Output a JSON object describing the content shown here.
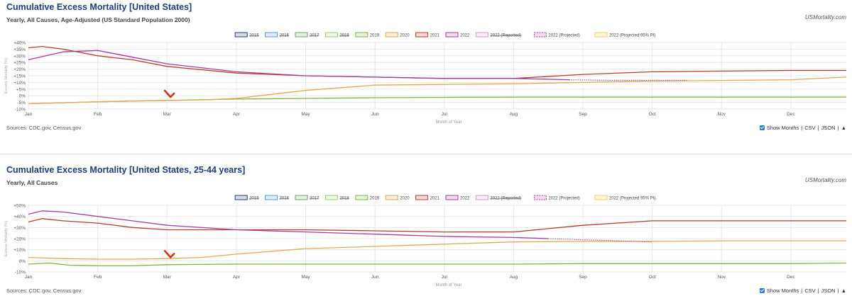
{
  "panels": [
    {
      "title": "Cumulative Excess Mortality [United States]",
      "subtitle": "Yearly, All Causes, Age-Adjusted (US Standard Population 2000)",
      "brand": "USMortality.com",
      "source": "Sources: CDC.gov, Census.gov",
      "controls": {
        "checkbox_label": "Show Months",
        "csv": "CSV",
        "json": "JSON",
        "sep": "|",
        "up": "▲"
      }
    },
    {
      "title": "Cumulative Excess Mortality [United States, 25-44 years]",
      "subtitle": "Yearly, All Causes",
      "brand": "USMortality.com",
      "source": "Sources: CDC.gov, Census.gov",
      "controls": {
        "checkbox_label": "Show Months",
        "csv": "CSV",
        "json": "JSON",
        "sep": "|",
        "up": "▲"
      }
    }
  ],
  "colors": {
    "2015": "#1f3d7a",
    "2016": "#5b9bd5",
    "2017": "#6aa56a",
    "2018": "#9ccc7a",
    "2019": "#7cb342",
    "2020": "#e8a64a",
    "2021": "#c0392b",
    "2022": "#a83c9b",
    "2022 (Reported)": "#d79ac8",
    "2022 (Projected)": "#a83c9b",
    "2022 (Projected 95% PI)": "#f2d35c",
    "arrow": "#d2321e",
    "grid": "#e8e8e8",
    "axis_text": "#555555"
  },
  "chart_data": [
    {
      "type": "line",
      "title": "",
      "xlabel": "Month of Year",
      "ylabel": "Excess Mortality (%)",
      "categories": [
        "Jan",
        "Feb",
        "Mar",
        "Apr",
        "May",
        "Jun",
        "Jul",
        "Aug",
        "Sep",
        "Oct",
        "Nov",
        "Dec"
      ],
      "ytick_labels": [
        "+40%",
        "+35%",
        "+30%",
        "+25%",
        "+20%",
        "+15%",
        "+10%",
        "+5%",
        "0%",
        "-5%",
        "-10%"
      ],
      "ylim": [
        -10,
        40
      ],
      "grid": true,
      "legend": {
        "position": "top-center",
        "entries": [
          {
            "name": "2015",
            "struck": true
          },
          {
            "name": "2016",
            "struck": true
          },
          {
            "name": "2017",
            "struck": true
          },
          {
            "name": "2018",
            "struck": true
          },
          {
            "name": "2019",
            "struck": false
          },
          {
            "name": "2020",
            "struck": false
          },
          {
            "name": "2021",
            "struck": false
          },
          {
            "name": "2022",
            "struck": false
          },
          {
            "name": "2022 (Reported)",
            "struck": true
          },
          {
            "name": "2022 (Projected)",
            "struck": false,
            "dashed": true
          },
          {
            "name": "2022 (Projected 95% PI)",
            "struck": false
          }
        ]
      },
      "series": [
        {
          "name": "2019",
          "x": [
            0,
            1,
            2,
            3,
            4,
            5,
            6,
            7,
            8,
            9,
            10,
            11,
            11.8
          ],
          "values": [
            -6,
            -4.5,
            -3.5,
            -2.5,
            -2,
            -1.5,
            -1.2,
            -1,
            -1,
            -1,
            -1,
            -1,
            -1
          ]
        },
        {
          "name": "2020",
          "x": [
            0,
            1,
            2,
            2.6,
            3,
            3.5,
            4,
            5,
            6,
            7,
            8,
            9,
            10,
            11,
            11.8
          ],
          "values": [
            -6,
            -4.5,
            -3.5,
            -3,
            -2,
            1,
            4,
            8,
            8.5,
            9,
            10,
            11,
            11.5,
            12,
            14
          ]
        },
        {
          "name": "2021",
          "x": [
            0,
            0.2,
            0.5,
            1,
            1.5,
            2,
            3,
            4,
            5,
            6,
            7,
            8,
            9,
            10,
            11,
            11.8
          ],
          "values": [
            36,
            37,
            35,
            30,
            27,
            22,
            17,
            15,
            14,
            13,
            13,
            16,
            18,
            18.5,
            19,
            19
          ]
        },
        {
          "name": "2022",
          "x": [
            0,
            0.5,
            1,
            1.5,
            2,
            3,
            4,
            5,
            6,
            7,
            7.8
          ],
          "values": [
            27,
            33,
            34,
            29,
            24,
            18,
            15,
            14,
            13,
            13,
            12
          ]
        },
        {
          "name": "2022 (Projected)",
          "x": [
            7.8,
            8.5,
            9,
            9.5
          ],
          "values": [
            12,
            11.5,
            11.5,
            11.5
          ]
        }
      ],
      "annotations": [
        {
          "type": "arrow",
          "x": 2.05,
          "y": -1.5
        }
      ]
    },
    {
      "type": "line",
      "title": "",
      "xlabel": "Month of Year",
      "ylabel": "Excess Mortality (%)",
      "categories": [
        "Jan",
        "Feb",
        "Mar",
        "Apr",
        "May",
        "Jun",
        "Jul",
        "Aug",
        "Sep",
        "Oct",
        "Nov",
        "Dec"
      ],
      "ytick_labels": [
        "+50%",
        "+40%",
        "+30%",
        "+20%",
        "+10%",
        "0%",
        "-10%"
      ],
      "ylim": [
        -10,
        50
      ],
      "grid": true,
      "legend": {
        "position": "top-center",
        "entries": [
          {
            "name": "2015",
            "struck": true
          },
          {
            "name": "2016",
            "struck": true
          },
          {
            "name": "2017",
            "struck": true
          },
          {
            "name": "2018",
            "struck": true
          },
          {
            "name": "2019",
            "struck": false
          },
          {
            "name": "2020",
            "struck": false
          },
          {
            "name": "2021",
            "struck": false
          },
          {
            "name": "2022",
            "struck": false
          },
          {
            "name": "2022 (Reported)",
            "struck": true
          },
          {
            "name": "2022 (Projected)",
            "struck": false,
            "dashed": true
          },
          {
            "name": "2022 (Projected 95% PI)",
            "struck": false
          }
        ]
      },
      "series": [
        {
          "name": "2019",
          "x": [
            0,
            0.3,
            0.6,
            1,
            1.5,
            2,
            3,
            4,
            5,
            6,
            7,
            8,
            9,
            10,
            11,
            11.8
          ],
          "values": [
            -3,
            -2,
            -4,
            -4.5,
            -4.5,
            -3.5,
            -3,
            -3,
            -3,
            -3,
            -3,
            -2.5,
            -2.5,
            -2.5,
            -2.5,
            -2
          ]
        },
        {
          "name": "2020",
          "x": [
            0,
            0.5,
            1,
            1.5,
            2,
            2.5,
            3,
            4,
            5,
            6,
            7,
            8,
            9,
            10,
            11,
            11.8
          ],
          "values": [
            3,
            2,
            1.5,
            1.5,
            2,
            3,
            6,
            11,
            13,
            15,
            17,
            17.5,
            17.5,
            18,
            18,
            18
          ]
        },
        {
          "name": "2021",
          "x": [
            0,
            0.2,
            0.5,
            1,
            1.5,
            2,
            3,
            4,
            5,
            6,
            7,
            8,
            9,
            10,
            11,
            11.8
          ],
          "values": [
            35,
            38,
            36,
            34,
            30,
            28,
            28,
            28,
            27,
            26,
            26,
            32,
            36,
            36,
            36,
            36
          ]
        },
        {
          "name": "2022",
          "x": [
            0,
            0.2,
            0.5,
            1,
            1.5,
            2,
            3,
            4,
            5,
            6,
            7,
            7.5
          ],
          "values": [
            42,
            45,
            44,
            40,
            36,
            32,
            28,
            26,
            24,
            22,
            21,
            20
          ]
        },
        {
          "name": "2022 (Projected)",
          "x": [
            7.5,
            8,
            8.5,
            9
          ],
          "values": [
            20,
            19,
            18,
            17
          ]
        }
      ],
      "annotations": [
        {
          "type": "arrow",
          "x": 2.05,
          "y": 2.5
        }
      ]
    }
  ]
}
